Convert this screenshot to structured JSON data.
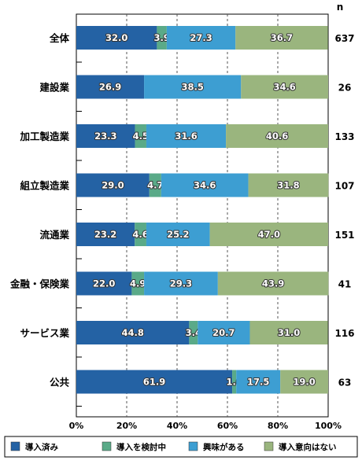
{
  "chart_data": {
    "type": "bar",
    "stacked": true,
    "orientation": "horizontal",
    "n_header": "n",
    "categories": [
      "全体",
      "建設業",
      "加工製造業",
      "組立製造業",
      "流通業",
      "金融・保険業",
      "サービス業",
      "公共"
    ],
    "n": [
      "637",
      "26",
      "133",
      "107",
      "151",
      "41",
      "116",
      "63"
    ],
    "series": [
      {
        "name": "導入済み",
        "color": "#2462a4",
        "values": [
          32.0,
          26.9,
          23.3,
          29.0,
          23.2,
          22.0,
          44.8,
          61.9
        ],
        "labels": [
          "32.0",
          "26.9",
          "23.3",
          "29.0",
          "23.2",
          "22.0",
          "44.8",
          "61.9"
        ]
      },
      {
        "name": "導入を検討中",
        "color": "#5aaa88",
        "values": [
          3.9,
          0,
          4.5,
          4.7,
          4.6,
          4.9,
          3.4,
          1.6
        ],
        "labels": [
          "3.9",
          "",
          "4.5",
          "4.7",
          "4.6",
          "4.9",
          "3.4",
          "1.6"
        ]
      },
      {
        "name": "興味がある",
        "color": "#3d9ed2",
        "values": [
          27.3,
          38.5,
          31.6,
          34.6,
          25.2,
          29.3,
          20.7,
          17.5
        ],
        "labels": [
          "27.3",
          "38.5",
          "31.6",
          "34.6",
          "25.2",
          "29.3",
          "20.7",
          "17.5"
        ]
      },
      {
        "name": "導入意向はない",
        "color": "#9ab57e",
        "values": [
          36.7,
          34.6,
          40.6,
          31.8,
          47.0,
          43.9,
          31.0,
          19.0
        ],
        "labels": [
          "36.7",
          "34.6",
          "40.6",
          "31.8",
          "47.0",
          "43.9",
          "31.0",
          "19.0"
        ]
      }
    ],
    "x_ticks": [
      "0%",
      "20%",
      "40%",
      "60%",
      "80%",
      "100%"
    ],
    "xlim": [
      0,
      100
    ],
    "grid": "vertical dashed",
    "legend_position": "bottom"
  }
}
